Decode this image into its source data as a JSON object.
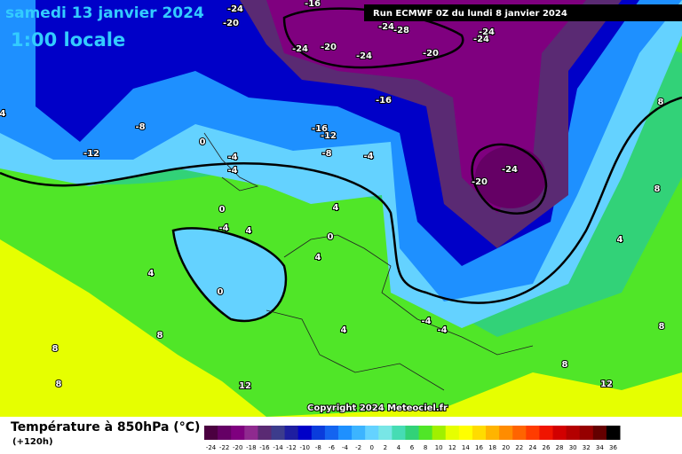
{
  "header": {
    "date": "samedi 13 janvier 2024",
    "time": "1:00 locale",
    "run": "Run ECMWF 0Z du lundi 8 janvier 2024"
  },
  "copyright": "Copyright 2024 Meteociel.fr",
  "legend": {
    "title": "Température à 850hPa (°C)",
    "lead": "(+120h)",
    "scale": {
      "values": [
        -24,
        -22,
        -20,
        -18,
        -16,
        -14,
        -12,
        -10,
        -8,
        -6,
        -4,
        -2,
        0,
        2,
        4,
        6,
        8,
        10,
        12,
        14,
        16,
        18,
        20,
        22,
        24,
        26,
        28,
        30,
        32,
        34,
        36
      ],
      "colors": [
        "#4b0040",
        "#650065",
        "#7f007f",
        "#8f2a8f",
        "#5a2a73",
        "#3c3c8c",
        "#1e1ea0",
        "#0000c8",
        "#0a3cdc",
        "#1464f0",
        "#1e90ff",
        "#3cb4ff",
        "#64d2ff",
        "#78e6e6",
        "#46dcb4",
        "#32d278",
        "#50e628",
        "#a0f000",
        "#e6ff00",
        "#ffff00",
        "#ffdc00",
        "#ffb400",
        "#ff8c00",
        "#ff6400",
        "#ff3c00",
        "#f01400",
        "#d20000",
        "#b40000",
        "#960000",
        "#640000",
        "#000000"
      ]
    }
  },
  "contour_labels": [
    -24,
    -16,
    -20,
    -24,
    -28,
    -24,
    -20,
    -24,
    -20,
    -24,
    -24,
    -16,
    -8,
    -12,
    -16,
    -12,
    -8,
    -4,
    -24,
    -20,
    0,
    -4,
    -4,
    0,
    -4,
    4,
    4,
    0,
    4,
    4,
    0,
    8,
    8,
    8,
    12,
    4,
    -4,
    -4,
    8,
    12,
    4,
    8,
    8,
    8,
    4
  ]
}
